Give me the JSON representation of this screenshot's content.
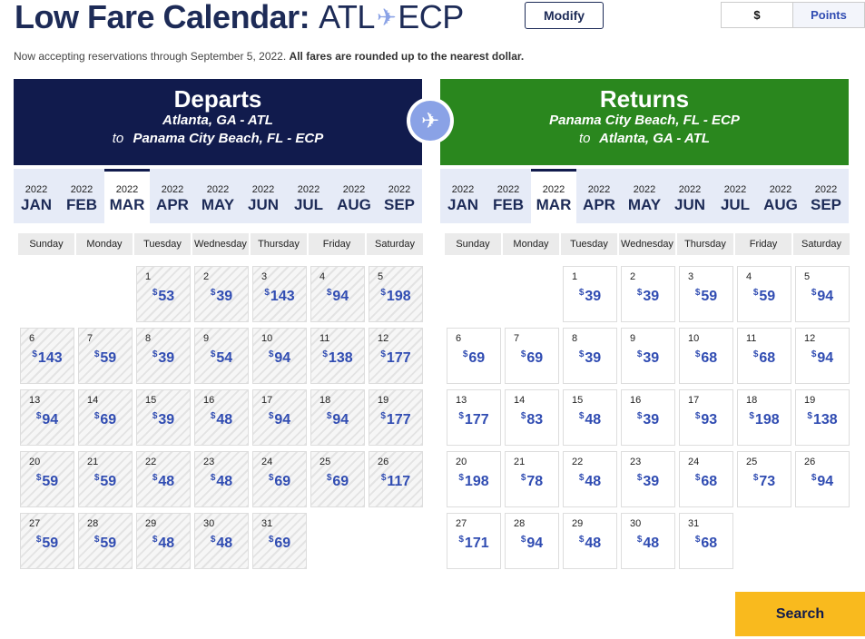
{
  "header": {
    "title": "Low Fare Calendar:",
    "origin": "ATL",
    "plane_glyph": "✈",
    "destination": "ECP",
    "modify_label": "Modify",
    "currency_toggle": {
      "dollars": "$",
      "points": "Points",
      "selected": "$"
    }
  },
  "notice": {
    "text": "Now accepting reservations through September 5, 2022.",
    "bold": "All fares are rounded up to the nearest dollar."
  },
  "departs": {
    "heading": "Departs",
    "from": "Atlanta, GA - ATL",
    "to_word": "to",
    "to": "Panama City Beach, FL - ECP"
  },
  "returns": {
    "heading": "Returns",
    "from": "Panama City Beach, FL - ECP",
    "to_word": "to",
    "to": "Atlanta, GA - ATL"
  },
  "months": [
    {
      "year": "2022",
      "month": "JAN"
    },
    {
      "year": "2022",
      "month": "FEB"
    },
    {
      "year": "2022",
      "month": "MAR"
    },
    {
      "year": "2022",
      "month": "APR"
    },
    {
      "year": "2022",
      "month": "MAY"
    },
    {
      "year": "2022",
      "month": "JUN"
    },
    {
      "year": "2022",
      "month": "JUL"
    },
    {
      "year": "2022",
      "month": "AUG"
    },
    {
      "year": "2022",
      "month": "SEP"
    }
  ],
  "selected_month": "MAR",
  "weekdays": [
    "Sunday",
    "Monday",
    "Tuesday",
    "Wednesday",
    "Thursday",
    "Friday",
    "Saturday"
  ],
  "first_weekday_index": 2,
  "currency_symbol": "$",
  "depart_fares": [
    "53",
    "39",
    "143",
    "94",
    "198",
    "143",
    "59",
    "39",
    "54",
    "94",
    "138",
    "177",
    "94",
    "69",
    "39",
    "48",
    "94",
    "94",
    "177",
    "59",
    "59",
    "48",
    "48",
    "69",
    "69",
    "117",
    "59",
    "59",
    "48",
    "48",
    "69"
  ],
  "return_fares": [
    "39",
    "39",
    "59",
    "59",
    "94",
    "69",
    "69",
    "39",
    "39",
    "68",
    "68",
    "94",
    "177",
    "83",
    "48",
    "39",
    "93",
    "198",
    "138",
    "198",
    "78",
    "48",
    "39",
    "68",
    "73",
    "94",
    "171",
    "94",
    "48",
    "48",
    "68"
  ],
  "colors": {
    "depart_panel": "#111b4d",
    "return_panel": "#2a871e",
    "fare": "#304cb2",
    "search_button": "#f9ba1e"
  },
  "search_label": "Search"
}
